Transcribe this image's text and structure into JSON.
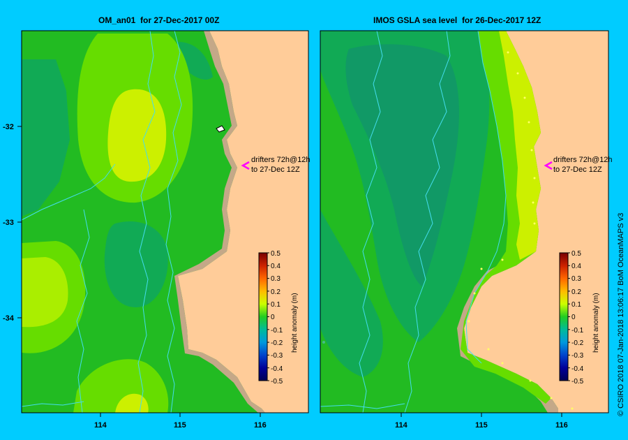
{
  "left_panel": {
    "title": "OM_an01  for 27-Dec-2017 00Z",
    "x_ticks": [
      "114",
      "115",
      "116"
    ],
    "y_ticks": [
      "-32",
      "-33",
      "-34"
    ],
    "annotation": [
      "drifters 72h@12h",
      "to 27-Dec 12Z"
    ],
    "colorbar": {
      "label": "height anomaly (m)",
      "ticks": [
        "0.5",
        "0.4",
        "0.3",
        "0.2",
        "0.1",
        "0",
        "-0.1",
        "-0.2",
        "-0.3",
        "-0.4",
        "-0.5"
      ]
    }
  },
  "right_panel": {
    "title": "IMOS GSLA sea level  for 26-Dec-2017 12Z",
    "x_ticks": [
      "114",
      "115",
      "116"
    ],
    "annotation": [
      "drifters 72h@12h",
      "to 27-Dec 12Z"
    ],
    "colorbar": {
      "label": "height anomaly (m)",
      "ticks": [
        "0.5",
        "0.4",
        "0.3",
        "0.2",
        "0.1",
        "0",
        "-0.1",
        "-0.2",
        "-0.3",
        "-0.4",
        "-0.5"
      ]
    }
  },
  "credit": "© CSIRO 2018   07-Jan-2018 13:06:17 BoM OceanMAPS v3",
  "colors": {
    "background": "#00ccff",
    "land": "#ffcc99",
    "coast": "#c4a888",
    "ocean_zero": "#22bb22",
    "ocean_low": "#11aa55",
    "ocean_high": "#88ee00",
    "contour": "#44ddee",
    "drifter_arrow": "#ff00ff",
    "colorbar_gradient": [
      "#880000",
      "#cc2200",
      "#ff6600",
      "#ffcc00",
      "#ccff00",
      "#22cc22",
      "#00bbaa",
      "#0099dd",
      "#0044cc",
      "#000099",
      "#000055"
    ]
  }
}
